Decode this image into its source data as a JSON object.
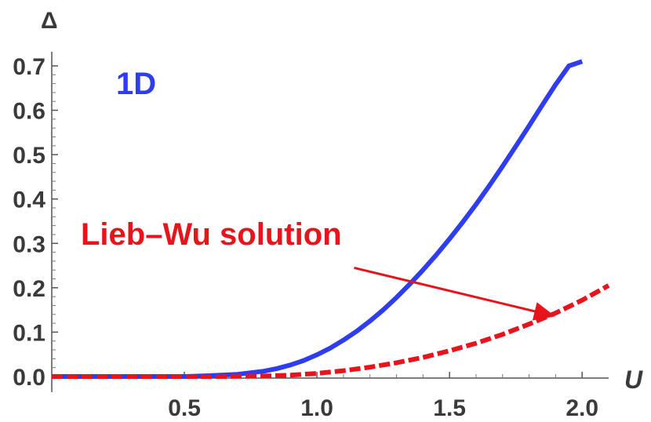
{
  "chart_data": {
    "type": "line",
    "xlabel": "U",
    "ylabel": "Δ",
    "xlim": [
      0.0,
      2.1
    ],
    "ylim": [
      0.0,
      0.72
    ],
    "x_ticks": [
      "0.5",
      "1.0",
      "1.5",
      "2.0"
    ],
    "y_ticks": [
      "0.0",
      "0.1",
      "0.2",
      "0.3",
      "0.4",
      "0.5",
      "0.6",
      "0.7"
    ],
    "grid": false,
    "series": [
      {
        "name": "1D",
        "color": "#2e3df0",
        "style": "solid",
        "x": [
          0.0,
          0.1,
          0.2,
          0.3,
          0.4,
          0.5,
          0.6,
          0.7,
          0.8,
          0.85,
          0.9,
          0.95,
          1.0,
          1.05,
          1.1,
          1.15,
          1.2,
          1.25,
          1.3,
          1.35,
          1.4,
          1.45,
          1.5,
          1.55,
          1.6,
          1.65,
          1.7,
          1.75,
          1.8,
          1.85,
          1.9,
          1.95,
          2.0
        ],
        "y": [
          0.0,
          0.0,
          0.0,
          0.0,
          0.0,
          0.0,
          0.002,
          0.005,
          0.012,
          0.018,
          0.026,
          0.036,
          0.049,
          0.064,
          0.082,
          0.102,
          0.125,
          0.15,
          0.178,
          0.208,
          0.24,
          0.274,
          0.31,
          0.348,
          0.388,
          0.43,
          0.474,
          0.519,
          0.565,
          0.612,
          0.658,
          0.7,
          0.71
        ]
      },
      {
        "name": "Lieb–Wu solution",
        "color": "#e8141b",
        "style": "dashed",
        "x": [
          0.0,
          0.2,
          0.4,
          0.6,
          0.8,
          0.9,
          1.0,
          1.1,
          1.2,
          1.3,
          1.4,
          1.5,
          1.6,
          1.7,
          1.8,
          1.9,
          2.0,
          2.1
        ],
        "y": [
          0.0,
          0.0,
          0.0,
          0.0,
          0.001,
          0.003,
          0.007,
          0.013,
          0.021,
          0.031,
          0.043,
          0.058,
          0.075,
          0.095,
          0.118,
          0.143,
          0.172,
          0.205
        ]
      }
    ],
    "annotations": {
      "panel_label": "1D",
      "lieb_wu_label": "Lieb–Wu solution",
      "arrow_from": [
        1.14,
        0.245
      ],
      "arrow_to": [
        1.89,
        0.137
      ]
    }
  }
}
